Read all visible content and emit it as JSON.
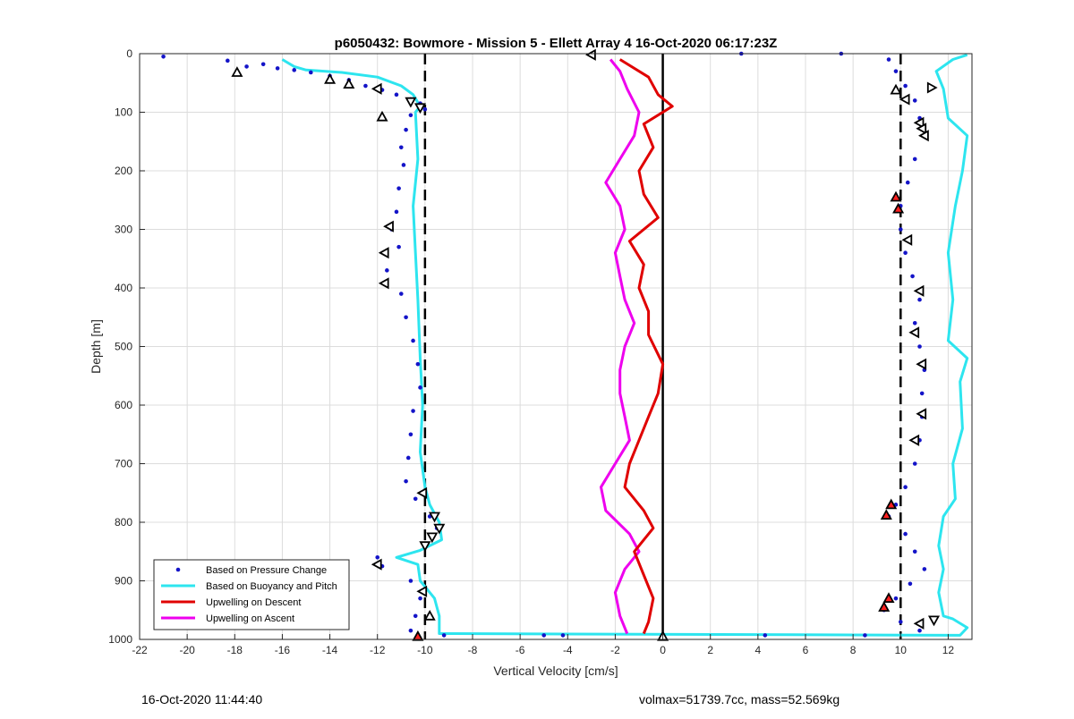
{
  "footer": {
    "left": "16-Oct-2020 11:44:40",
    "right": "volmax=51739.7cc, mass=52.569kg"
  },
  "chart_data": {
    "type": "scatter",
    "title": "p6050432: Bowmore - Mission 5 - Ellett Array 4 16-Oct-2020 06:17:23Z",
    "xlabel": "Vertical Velocity [cm/s]",
    "ylabel": "Depth [m]",
    "xlim": [
      -22,
      13
    ],
    "ylim": [
      0,
      1000
    ],
    "y_reversed": true,
    "grid": true,
    "x_ticks": [
      -22,
      -20,
      -18,
      -16,
      -14,
      -12,
      -10,
      -8,
      -6,
      -4,
      -2,
      0,
      2,
      4,
      6,
      8,
      10,
      12
    ],
    "y_ticks": [
      0,
      100,
      200,
      300,
      400,
      500,
      600,
      700,
      800,
      900,
      1000
    ],
    "legend_position": "bottom-left",
    "reference_lines": [
      {
        "x": -10,
        "style": "dashed",
        "color": "#000000"
      },
      {
        "x": 0,
        "style": "solid",
        "color": "#000000"
      },
      {
        "x": 10,
        "style": "dashed",
        "color": "#000000"
      }
    ],
    "series": [
      {
        "name": "Based on Pressure Change",
        "style": "dots",
        "color": "#1414c8",
        "points": [
          {
            "x": -21,
            "y": 5
          },
          {
            "x": -18.3,
            "y": 12
          },
          {
            "x": -17.5,
            "y": 22
          },
          {
            "x": -16.8,
            "y": 18
          },
          {
            "x": -16.2,
            "y": 25
          },
          {
            "x": -15.5,
            "y": 28
          },
          {
            "x": -14.8,
            "y": 32
          },
          {
            "x": -14.0,
            "y": 38
          },
          {
            "x": -13.2,
            "y": 45
          },
          {
            "x": -12.5,
            "y": 55
          },
          {
            "x": -11.8,
            "y": 62
          },
          {
            "x": -11.2,
            "y": 70
          },
          {
            "x": -10.6,
            "y": 78
          },
          {
            "x": -10.2,
            "y": 85
          },
          {
            "x": -10.0,
            "y": 95
          },
          {
            "x": -10.6,
            "y": 105
          },
          {
            "x": -10.8,
            "y": 130
          },
          {
            "x": -11.0,
            "y": 160
          },
          {
            "x": -10.9,
            "y": 190
          },
          {
            "x": -11.1,
            "y": 230
          },
          {
            "x": -11.2,
            "y": 270
          },
          {
            "x": -11.4,
            "y": 300
          },
          {
            "x": -11.1,
            "y": 330
          },
          {
            "x": -11.6,
            "y": 370
          },
          {
            "x": -11.0,
            "y": 410
          },
          {
            "x": -10.8,
            "y": 450
          },
          {
            "x": -10.5,
            "y": 490
          },
          {
            "x": -10.3,
            "y": 530
          },
          {
            "x": -10.2,
            "y": 570
          },
          {
            "x": -10.5,
            "y": 610
          },
          {
            "x": -10.6,
            "y": 650
          },
          {
            "x": -10.7,
            "y": 690
          },
          {
            "x": -10.8,
            "y": 730
          },
          {
            "x": -10.4,
            "y": 760
          },
          {
            "x": -9.8,
            "y": 790
          },
          {
            "x": -9.5,
            "y": 810
          },
          {
            "x": -10.0,
            "y": 840
          },
          {
            "x": -12.0,
            "y": 860
          },
          {
            "x": -11.8,
            "y": 875
          },
          {
            "x": -10.6,
            "y": 900
          },
          {
            "x": -10.2,
            "y": 930
          },
          {
            "x": -10.4,
            "y": 960
          },
          {
            "x": -10.6,
            "y": 985
          },
          {
            "x": -9.2,
            "y": 993
          },
          {
            "x": -5.0,
            "y": 993
          },
          {
            "x": -4.2,
            "y": 993
          },
          {
            "x": 4.3,
            "y": 993
          },
          {
            "x": 8.5,
            "y": 993
          },
          {
            "x": 3.3,
            "y": 0
          },
          {
            "x": 7.5,
            "y": 0
          },
          {
            "x": 9.5,
            "y": 10
          },
          {
            "x": 9.8,
            "y": 30
          },
          {
            "x": 10.2,
            "y": 55
          },
          {
            "x": 10.6,
            "y": 80
          },
          {
            "x": 10.8,
            "y": 110
          },
          {
            "x": 11.0,
            "y": 140
          },
          {
            "x": 10.6,
            "y": 180
          },
          {
            "x": 10.3,
            "y": 220
          },
          {
            "x": 10.0,
            "y": 260
          },
          {
            "x": 10.0,
            "y": 300
          },
          {
            "x": 10.2,
            "y": 340
          },
          {
            "x": 10.5,
            "y": 380
          },
          {
            "x": 10.8,
            "y": 420
          },
          {
            "x": 10.6,
            "y": 460
          },
          {
            "x": 10.8,
            "y": 500
          },
          {
            "x": 11.0,
            "y": 540
          },
          {
            "x": 10.9,
            "y": 580
          },
          {
            "x": 10.9,
            "y": 620
          },
          {
            "x": 10.8,
            "y": 660
          },
          {
            "x": 10.6,
            "y": 700
          },
          {
            "x": 10.2,
            "y": 740
          },
          {
            "x": 9.8,
            "y": 770
          },
          {
            "x": 9.5,
            "y": 790
          },
          {
            "x": 10.2,
            "y": 820
          },
          {
            "x": 10.6,
            "y": 850
          },
          {
            "x": 11.0,
            "y": 880
          },
          {
            "x": 10.4,
            "y": 905
          },
          {
            "x": 9.8,
            "y": 930
          },
          {
            "x": 9.3,
            "y": 950
          },
          {
            "x": 10.0,
            "y": 970
          },
          {
            "x": 10.8,
            "y": 985
          }
        ]
      },
      {
        "name": "Based on Buoyancy and Pitch",
        "style": "line",
        "color": "#2de5ef",
        "points": [
          {
            "x": -16.0,
            "y": 10
          },
          {
            "x": -15.5,
            "y": 22
          },
          {
            "x": -15.0,
            "y": 28
          },
          {
            "x": -13.5,
            "y": 32
          },
          {
            "x": -12.0,
            "y": 40
          },
          {
            "x": -11.0,
            "y": 55
          },
          {
            "x": -10.5,
            "y": 70
          },
          {
            "x": -10.2,
            "y": 90
          },
          {
            "x": -10.4,
            "y": 100
          },
          {
            "x": -10.3,
            "y": 180
          },
          {
            "x": -10.5,
            "y": 260
          },
          {
            "x": -10.4,
            "y": 340
          },
          {
            "x": -10.3,
            "y": 420
          },
          {
            "x": -10.2,
            "y": 520
          },
          {
            "x": -10.1,
            "y": 600
          },
          {
            "x": -10.2,
            "y": 680
          },
          {
            "x": -10.0,
            "y": 740
          },
          {
            "x": -9.8,
            "y": 770
          },
          {
            "x": -9.4,
            "y": 800
          },
          {
            "x": -9.3,
            "y": 830
          },
          {
            "x": -10.2,
            "y": 848
          },
          {
            "x": -11.2,
            "y": 860
          },
          {
            "x": -10.3,
            "y": 872
          },
          {
            "x": -10.2,
            "y": 900
          },
          {
            "x": -9.6,
            "y": 930
          },
          {
            "x": -9.4,
            "y": 960
          },
          {
            "x": -9.4,
            "y": 990
          },
          {
            "x": 12.5,
            "y": 993
          },
          {
            "x": 12.8,
            "y": 980
          },
          {
            "x": 12.2,
            "y": 965
          },
          {
            "x": 11.8,
            "y": 960
          },
          {
            "x": 11.6,
            "y": 920
          },
          {
            "x": 11.8,
            "y": 880
          },
          {
            "x": 11.6,
            "y": 840
          },
          {
            "x": 11.8,
            "y": 790
          },
          {
            "x": 12.3,
            "y": 760
          },
          {
            "x": 12.2,
            "y": 700
          },
          {
            "x": 12.6,
            "y": 640
          },
          {
            "x": 12.5,
            "y": 560
          },
          {
            "x": 12.8,
            "y": 520
          },
          {
            "x": 12.0,
            "y": 490
          },
          {
            "x": 12.2,
            "y": 420
          },
          {
            "x": 12.0,
            "y": 340
          },
          {
            "x": 12.3,
            "y": 260
          },
          {
            "x": 12.6,
            "y": 200
          },
          {
            "x": 12.8,
            "y": 140
          },
          {
            "x": 12.0,
            "y": 110
          },
          {
            "x": 11.8,
            "y": 60
          },
          {
            "x": 11.5,
            "y": 30
          },
          {
            "x": 12.2,
            "y": 10
          },
          {
            "x": 12.8,
            "y": 2
          }
        ]
      },
      {
        "name": "Upwelling on Descent",
        "style": "line",
        "color": "#e00000",
        "points": [
          {
            "x": -1.8,
            "y": 10
          },
          {
            "x": -0.6,
            "y": 40
          },
          {
            "x": -0.2,
            "y": 70
          },
          {
            "x": 0.4,
            "y": 90
          },
          {
            "x": -0.8,
            "y": 120
          },
          {
            "x": -0.4,
            "y": 160
          },
          {
            "x": -1.0,
            "y": 200
          },
          {
            "x": -0.8,
            "y": 240
          },
          {
            "x": -0.2,
            "y": 280
          },
          {
            "x": -1.4,
            "y": 320
          },
          {
            "x": -0.8,
            "y": 360
          },
          {
            "x": -1.0,
            "y": 400
          },
          {
            "x": -0.6,
            "y": 440
          },
          {
            "x": -0.6,
            "y": 480
          },
          {
            "x": 0.0,
            "y": 530
          },
          {
            "x": -0.2,
            "y": 580
          },
          {
            "x": -0.6,
            "y": 620
          },
          {
            "x": -1.0,
            "y": 660
          },
          {
            "x": -1.4,
            "y": 700
          },
          {
            "x": -1.6,
            "y": 740
          },
          {
            "x": -0.8,
            "y": 780
          },
          {
            "x": -0.4,
            "y": 810
          },
          {
            "x": -1.2,
            "y": 850
          },
          {
            "x": -0.8,
            "y": 890
          },
          {
            "x": -0.4,
            "y": 930
          },
          {
            "x": -0.6,
            "y": 970
          },
          {
            "x": -0.8,
            "y": 990
          }
        ]
      },
      {
        "name": "Upwelling on Ascent",
        "style": "line",
        "color": "#ee00ee",
        "points": [
          {
            "x": -1.5,
            "y": 990
          },
          {
            "x": -1.8,
            "y": 960
          },
          {
            "x": -2.0,
            "y": 920
          },
          {
            "x": -1.6,
            "y": 880
          },
          {
            "x": -1.0,
            "y": 850
          },
          {
            "x": -1.4,
            "y": 820
          },
          {
            "x": -2.4,
            "y": 780
          },
          {
            "x": -2.6,
            "y": 740
          },
          {
            "x": -2.0,
            "y": 700
          },
          {
            "x": -1.4,
            "y": 660
          },
          {
            "x": -1.6,
            "y": 620
          },
          {
            "x": -1.8,
            "y": 580
          },
          {
            "x": -1.8,
            "y": 540
          },
          {
            "x": -1.6,
            "y": 500
          },
          {
            "x": -1.2,
            "y": 460
          },
          {
            "x": -1.6,
            "y": 420
          },
          {
            "x": -1.8,
            "y": 380
          },
          {
            "x": -2.0,
            "y": 340
          },
          {
            "x": -1.6,
            "y": 300
          },
          {
            "x": -1.8,
            "y": 260
          },
          {
            "x": -2.4,
            "y": 220
          },
          {
            "x": -1.8,
            "y": 180
          },
          {
            "x": -1.2,
            "y": 140
          },
          {
            "x": -1.0,
            "y": 100
          },
          {
            "x": -1.5,
            "y": 60
          },
          {
            "x": -1.8,
            "y": 30
          },
          {
            "x": -2.2,
            "y": 10
          }
        ]
      }
    ],
    "markers": [
      {
        "x": -17.9,
        "y": 32,
        "shape": "tri-up",
        "fill": "#ffffff"
      },
      {
        "x": -14.0,
        "y": 44,
        "shape": "tri-up",
        "fill": "#ffffff"
      },
      {
        "x": -13.2,
        "y": 52,
        "shape": "tri-up",
        "fill": "#ffffff"
      },
      {
        "x": -12.0,
        "y": 60,
        "shape": "tri-left",
        "fill": "#ffffff"
      },
      {
        "x": -10.6,
        "y": 82,
        "shape": "tri-down",
        "fill": "#ffffff"
      },
      {
        "x": -10.2,
        "y": 92,
        "shape": "tri-down",
        "fill": "#ffffff"
      },
      {
        "x": -11.8,
        "y": 108,
        "shape": "tri-up",
        "fill": "#ffffff"
      },
      {
        "x": -11.5,
        "y": 295,
        "shape": "tri-left",
        "fill": "#ffffff"
      },
      {
        "x": -11.7,
        "y": 340,
        "shape": "tri-left",
        "fill": "#ffffff"
      },
      {
        "x": -11.7,
        "y": 392,
        "shape": "tri-left",
        "fill": "#ffffff"
      },
      {
        "x": -10.1,
        "y": 750,
        "shape": "tri-left",
        "fill": "#ffffff"
      },
      {
        "x": -9.6,
        "y": 790,
        "shape": "tri-down",
        "fill": "#ffffff"
      },
      {
        "x": -9.4,
        "y": 810,
        "shape": "tri-down",
        "fill": "#ffffff"
      },
      {
        "x": -9.7,
        "y": 825,
        "shape": "tri-down",
        "fill": "#ffffff"
      },
      {
        "x": -10.0,
        "y": 840,
        "shape": "tri-down",
        "fill": "#ffffff"
      },
      {
        "x": -12.0,
        "y": 872,
        "shape": "tri-left",
        "fill": "#ffffff"
      },
      {
        "x": -10.1,
        "y": 918,
        "shape": "tri-left",
        "fill": "#ffffff"
      },
      {
        "x": -9.8,
        "y": 960,
        "shape": "tri-up",
        "fill": "#ffffff"
      },
      {
        "x": -10.3,
        "y": 995,
        "shape": "tri-up",
        "fill": "#ff2020"
      },
      {
        "x": -3.0,
        "y": 2,
        "shape": "tri-left",
        "fill": "#ffffff"
      },
      {
        "x": 0.0,
        "y": 995,
        "shape": "tri-up",
        "fill": "#ffffff"
      },
      {
        "x": 9.8,
        "y": 62,
        "shape": "tri-up",
        "fill": "#ffffff"
      },
      {
        "x": 11.3,
        "y": 58,
        "shape": "tri-right",
        "fill": "#ffffff"
      },
      {
        "x": 10.2,
        "y": 78,
        "shape": "tri-left",
        "fill": "#ffffff"
      },
      {
        "x": 10.8,
        "y": 118,
        "shape": "tri-left",
        "fill": "#ffffff"
      },
      {
        "x": 10.9,
        "y": 128,
        "shape": "tri-left",
        "fill": "#ffffff"
      },
      {
        "x": 11.0,
        "y": 140,
        "shape": "tri-left",
        "fill": "#ffffff"
      },
      {
        "x": 9.8,
        "y": 245,
        "shape": "tri-up",
        "fill": "#ff2020"
      },
      {
        "x": 9.9,
        "y": 265,
        "shape": "tri-up",
        "fill": "#ff2020"
      },
      {
        "x": 10.3,
        "y": 318,
        "shape": "tri-left",
        "fill": "#ffffff"
      },
      {
        "x": 10.8,
        "y": 405,
        "shape": "tri-left",
        "fill": "#ffffff"
      },
      {
        "x": 10.6,
        "y": 476,
        "shape": "tri-left",
        "fill": "#ffffff"
      },
      {
        "x": 10.9,
        "y": 530,
        "shape": "tri-left",
        "fill": "#ffffff"
      },
      {
        "x": 10.9,
        "y": 615,
        "shape": "tri-left",
        "fill": "#ffffff"
      },
      {
        "x": 10.6,
        "y": 660,
        "shape": "tri-left",
        "fill": "#ffffff"
      },
      {
        "x": 9.6,
        "y": 770,
        "shape": "tri-up",
        "fill": "#ff2020"
      },
      {
        "x": 9.4,
        "y": 788,
        "shape": "tri-up",
        "fill": "#ff2020"
      },
      {
        "x": 9.5,
        "y": 930,
        "shape": "tri-up",
        "fill": "#ff2020"
      },
      {
        "x": 9.3,
        "y": 945,
        "shape": "tri-up",
        "fill": "#ff2020"
      },
      {
        "x": 10.8,
        "y": 973,
        "shape": "tri-left",
        "fill": "#ffffff"
      },
      {
        "x": 11.4,
        "y": 967,
        "shape": "tri-down",
        "fill": "#ffffff"
      }
    ]
  }
}
